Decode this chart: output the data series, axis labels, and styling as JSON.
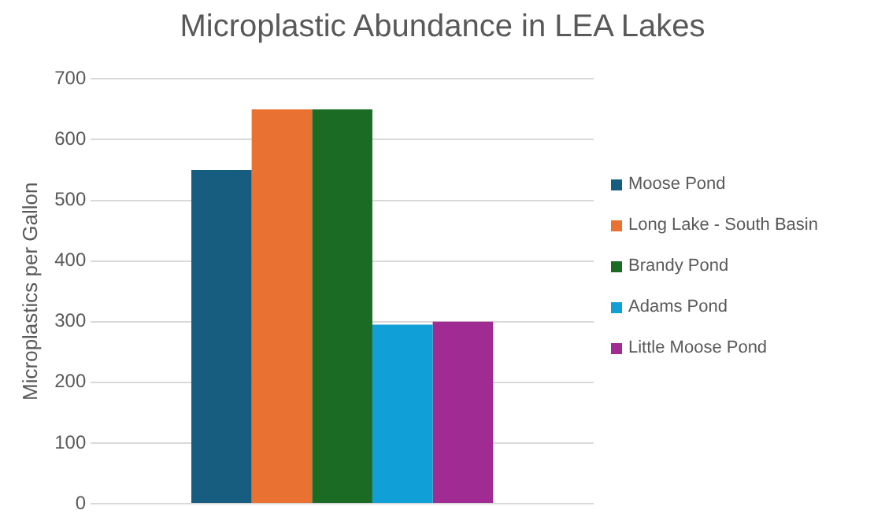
{
  "chart_data": {
    "type": "bar",
    "title": "Microplastic Abundance in LEA Lakes",
    "ylabel": "Microplastics per Gallon",
    "categories": [
      null
    ],
    "series": [
      {
        "name": "Moose Pond",
        "color": "#175d80",
        "values": [
          550
        ]
      },
      {
        "name": "Long Lake - South Basin",
        "color": "#e97132",
        "values": [
          650
        ]
      },
      {
        "name": "Brandy Pond",
        "color": "#1b6b25",
        "values": [
          650
        ]
      },
      {
        "name": "Adams Pond",
        "color": "#109fd6",
        "values": [
          295
        ]
      },
      {
        "name": "Little Moose Pond",
        "color": "#a02b93",
        "values": [
          300
        ]
      }
    ],
    "ylim": [
      0,
      700
    ],
    "yticks": [
      0,
      100,
      200,
      300,
      400,
      500,
      600,
      700
    ],
    "grid": "y",
    "legend": "right"
  }
}
